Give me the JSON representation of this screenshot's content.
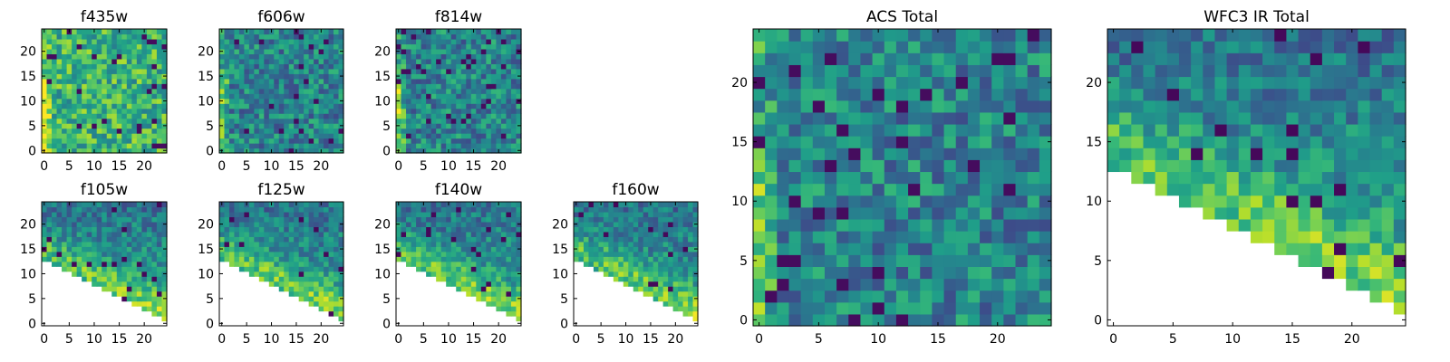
{
  "chart_data": {
    "type": "heatmap",
    "colormap": "viridis",
    "palette": [
      "#440154",
      "#3b528b",
      "#21908d",
      "#5dc963",
      "#fde725"
    ],
    "grid": false,
    "panels": [
      {
        "title": "f435w",
        "size": 25,
        "pattern": "noise",
        "xticks": [
          "0",
          "5",
          "10",
          "15",
          "20"
        ],
        "yticks": [
          "0",
          "5",
          "10",
          "15",
          "20"
        ],
        "xlim": [
          0,
          24
        ],
        "ylim": [
          0,
          24
        ]
      },
      {
        "title": "f606w",
        "size": 25,
        "pattern": "noise",
        "xticks": [
          "0",
          "5",
          "10",
          "15",
          "20"
        ],
        "yticks": [
          "0",
          "5",
          "10",
          "15",
          "20"
        ],
        "xlim": [
          0,
          24
        ],
        "ylim": [
          0,
          24
        ]
      },
      {
        "title": "f814w",
        "size": 25,
        "pattern": "noise",
        "xticks": [
          "0",
          "5",
          "10",
          "15",
          "20"
        ],
        "yticks": [
          "0",
          "5",
          "10",
          "15",
          "20"
        ],
        "xlim": [
          0,
          24
        ],
        "ylim": [
          0,
          24
        ]
      },
      {
        "title": "f105w",
        "size": 25,
        "pattern": "wedge",
        "xticks": [
          "0",
          "5",
          "10",
          "15",
          "20"
        ],
        "yticks": [
          "0",
          "5",
          "10",
          "15",
          "20"
        ],
        "xlim": [
          0,
          24
        ],
        "ylim": [
          0,
          24
        ]
      },
      {
        "title": "f125w",
        "size": 25,
        "pattern": "wedge",
        "xticks": [
          "0",
          "5",
          "10",
          "15",
          "20"
        ],
        "yticks": [
          "0",
          "5",
          "10",
          "15",
          "20"
        ],
        "xlim": [
          0,
          24
        ],
        "ylim": [
          0,
          24
        ]
      },
      {
        "title": "f140w",
        "size": 25,
        "pattern": "wedge",
        "xticks": [
          "0",
          "5",
          "10",
          "15",
          "20"
        ],
        "yticks": [
          "0",
          "5",
          "10",
          "15",
          "20"
        ],
        "xlim": [
          0,
          24
        ],
        "ylim": [
          0,
          24
        ]
      },
      {
        "title": "f160w",
        "size": 25,
        "pattern": "wedge",
        "xticks": [
          "0",
          "5",
          "10",
          "15",
          "20"
        ],
        "yticks": [
          "0",
          "5",
          "10",
          "15",
          "20"
        ],
        "xlim": [
          0,
          24
        ],
        "ylim": [
          0,
          24
        ]
      },
      {
        "title": "ACS Total",
        "size": 25,
        "pattern": "noise",
        "xticks": [
          "0",
          "5",
          "10",
          "15",
          "20"
        ],
        "yticks": [
          "0",
          "5",
          "10",
          "15",
          "20"
        ],
        "xlim": [
          0,
          24
        ],
        "ylim": [
          0,
          24
        ]
      },
      {
        "title": "WFC3 IR Total",
        "size": 25,
        "pattern": "wedge",
        "xticks": [
          "0",
          "5",
          "10",
          "15",
          "20"
        ],
        "yticks": [
          "0",
          "5",
          "10",
          "15",
          "20"
        ],
        "xlim": [
          0,
          24
        ],
        "ylim": [
          0,
          24
        ]
      }
    ]
  }
}
